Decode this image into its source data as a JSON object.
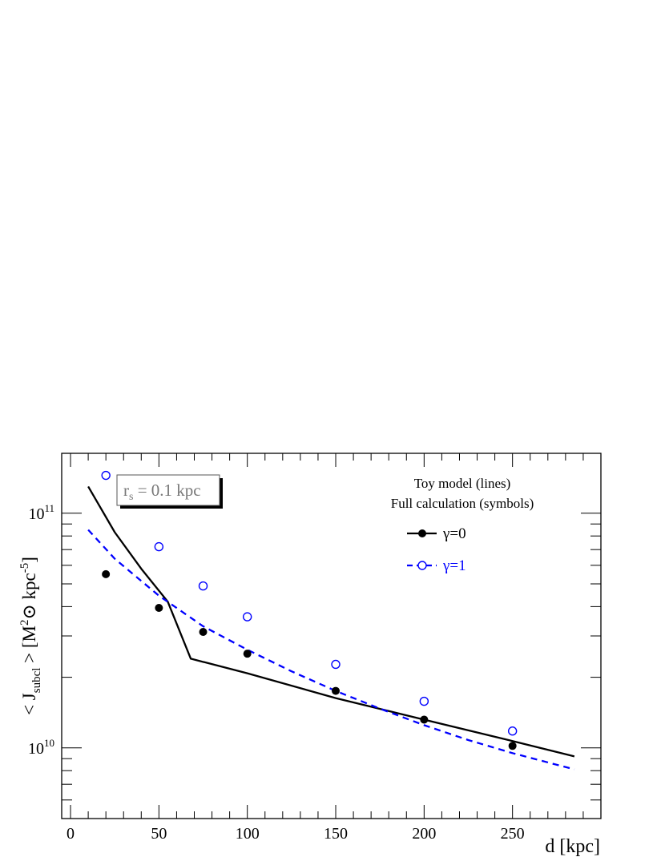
{
  "chart_data": {
    "type": "line",
    "xlabel": "d [kpc]",
    "ylabel": {
      "main": "< J",
      "sub": "subcl",
      "rest": " >  [M",
      "sup1": "2",
      "sym": "⊙",
      "rest2": " kpc",
      "sup2": "-5",
      "end": "]"
    },
    "xlim": [
      -5,
      300
    ],
    "ylim": [
      5000000000.0,
      180000000000.0
    ],
    "yscale": "log",
    "xticks": [
      0,
      50,
      100,
      150,
      200,
      250
    ],
    "xticklabels": [
      "0",
      "50",
      "100",
      "150",
      "200",
      "250"
    ],
    "ymajor": [
      {
        "value": 10000000000.0,
        "base": "10",
        "exp": "10"
      },
      {
        "value": 100000000000.0,
        "base": "10",
        "exp": "11"
      }
    ],
    "series": [
      {
        "name": "γ=0",
        "kind": "line",
        "style": "solid",
        "color": "#000000",
        "x": [
          10,
          25,
          40,
          55,
          68,
          100,
          150,
          200,
          250,
          285
        ],
        "y": [
          130000000000.0,
          83000000000.0,
          58000000000.0,
          42000000000.0,
          24000000000.0,
          20800000000.0,
          16300000000.0,
          13200000000.0,
          10700000000.0,
          9200000000.0
        ]
      },
      {
        "name": "γ=1",
        "kind": "line",
        "style": "dashed",
        "color": "#0000ff",
        "x": [
          10,
          25,
          50,
          75,
          100,
          125,
          150,
          175,
          200,
          225,
          250,
          285
        ],
        "y": [
          85000000000.0,
          64000000000.0,
          44500000000.0,
          33000000000.0,
          26200000000.0,
          21200000000.0,
          17500000000.0,
          14700000000.0,
          12500000000.0,
          10800000000.0,
          9500000000.0,
          8100000000.0
        ]
      },
      {
        "name": "γ=0",
        "kind": "points",
        "marker": "filled-circle",
        "color": "#000000",
        "x": [
          20,
          50,
          75,
          100,
          150,
          200,
          250
        ],
        "y": [
          55000000000.0,
          39500000000.0,
          31200000000.0,
          25200000000.0,
          17500000000.0,
          13200000000.0,
          10200000000.0
        ]
      },
      {
        "name": "γ=1",
        "kind": "points",
        "marker": "open-circle",
        "color": "#0000ff",
        "x": [
          20,
          50,
          75,
          100,
          150,
          200,
          250
        ],
        "y": [
          145000000000.0,
          72000000000.0,
          49000000000.0,
          36200000000.0,
          22700000000.0,
          15800000000.0,
          11800000000.0
        ]
      }
    ],
    "annotation": {
      "base": "r",
      "sub": "s",
      "rest": " = 0.1 kpc"
    },
    "legend": {
      "placement": "top-right",
      "header1": "Toy model (lines)",
      "header2": "Full calculation (symbols)",
      "entries": [
        {
          "label": "γ=0",
          "color": "#000000",
          "line": "solid",
          "marker": "filled-circle"
        },
        {
          "label": "γ=1",
          "color": "#0000ff",
          "line": "dashed",
          "marker": "open-circle"
        }
      ]
    }
  }
}
